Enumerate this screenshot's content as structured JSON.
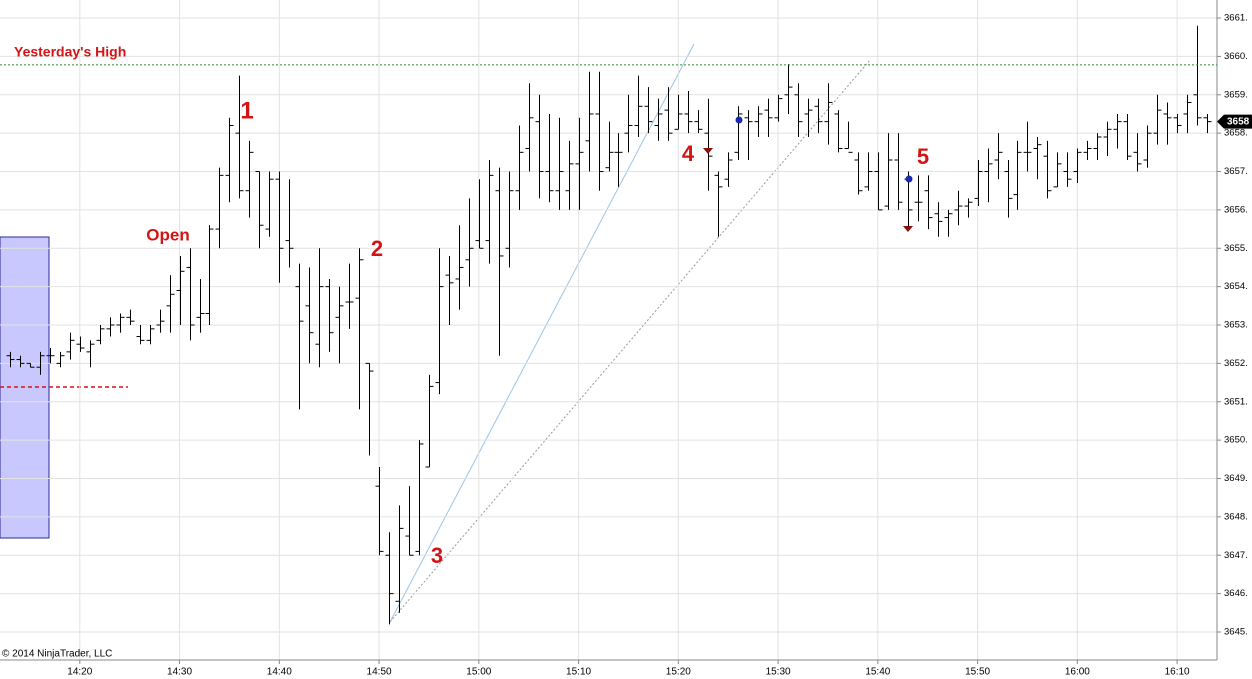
{
  "chart_data": {
    "type": "ohlc",
    "x": [
      "14:13",
      "14:14",
      "14:15",
      "14:16",
      "14:17",
      "14:18",
      "14:19",
      "14:20",
      "14:21",
      "14:22",
      "14:23",
      "14:24",
      "14:25",
      "14:26",
      "14:27",
      "14:28",
      "14:29",
      "14:30",
      "14:31",
      "14:32",
      "14:33",
      "14:34",
      "14:35",
      "14:36",
      "14:37",
      "14:38",
      "14:39",
      "14:40",
      "14:41",
      "14:42",
      "14:43",
      "14:44",
      "14:45",
      "14:46",
      "14:47",
      "14:48",
      "14:49",
      "14:50",
      "14:51",
      "14:52",
      "14:53",
      "14:54",
      "14:55",
      "14:56",
      "14:57",
      "14:58",
      "14:59",
      "15:00",
      "15:01",
      "15:02",
      "15:03",
      "15:04",
      "15:05",
      "15:06",
      "15:07",
      "15:08",
      "15:09",
      "15:10",
      "15:11",
      "15:12",
      "15:13",
      "15:14",
      "15:15",
      "15:16",
      "15:17",
      "15:18",
      "15:19",
      "15:20",
      "15:21",
      "15:22",
      "15:23",
      "15:24",
      "15:25",
      "15:26",
      "15:27",
      "15:28",
      "15:29",
      "15:30",
      "15:31",
      "15:32",
      "15:33",
      "15:34",
      "15:35",
      "15:36",
      "15:37",
      "15:38",
      "15:39",
      "15:40",
      "15:41",
      "15:42",
      "15:43",
      "15:44",
      "15:45",
      "15:46",
      "15:47",
      "15:48",
      "15:49",
      "15:50",
      "15:51",
      "15:52",
      "15:53",
      "15:54",
      "15:55",
      "15:56",
      "15:57",
      "15:58",
      "15:59",
      "16:00",
      "16:01",
      "16:02",
      "16:03",
      "16:04",
      "16:05",
      "16:06",
      "16:07",
      "16:08",
      "16:09",
      "16:10",
      "16:11",
      "16:12",
      "16:13"
    ],
    "open": [
      3652.2,
      3652.1,
      3652.0,
      3651.9,
      3652.2,
      3652.0,
      3652.3,
      3652.5,
      3652.3,
      3652.6,
      3652.9,
      3653.0,
      3653.2,
      3652.7,
      3652.6,
      3653.0,
      3653.5,
      3653.9,
      3654.5,
      3653.2,
      3653.3,
      3655.5,
      3656.9,
      3658.0,
      3656.5,
      3657.0,
      3655.5,
      3656.8,
      3655.2,
      3654.0,
      3653.5,
      3652.5,
      3654.0,
      3653.2,
      3653.6,
      3653.7,
      3652.0,
      3648.8,
      3647.0,
      3645.8,
      3647.5,
      3647.1,
      3649.3,
      3651.5,
      3654.3,
      3654.2,
      3654.7,
      3655.2,
      3655.2,
      3656.5,
      3655.0,
      3656.5,
      3657.6,
      3658.3,
      3657.0,
      3656.5,
      3656.5,
      3657.2,
      3657.8,
      3658.5,
      3657.1,
      3657.5,
      3658.0,
      3658.2,
      3658.7,
      3658.2,
      3658.6,
      3658.1,
      3658.5,
      3658.3,
      3658.0,
      3656.9,
      3656.8,
      3657.5,
      3658.4,
      3658.3,
      3658.6,
      3658.4,
      3659.0,
      3659.0,
      3658.5,
      3658.7,
      3658.3,
      3658.5,
      3657.6,
      3657.3,
      3656.6,
      3657.0,
      3656.1,
      3657.3,
      3656.8,
      3656.2,
      3656.5,
      3655.9,
      3655.8,
      3656.0,
      3656.1,
      3656.3,
      3657.0,
      3657.3,
      3657.0,
      3656.4,
      3657.5,
      3657.6,
      3657.4,
      3656.6,
      3657.0,
      3657.0,
      3657.5,
      3657.6,
      3657.9,
      3658.1,
      3658.3,
      3657.5,
      3657.3,
      3658.0,
      3658.5,
      3658.4,
      3658.5,
      3659.0,
      3658.4
    ],
    "high": [
      3652.3,
      3652.2,
      3652.0,
      3652.3,
      3652.4,
      3652.3,
      3652.8,
      3652.7,
      3652.6,
      3653.0,
      3653.2,
      3653.3,
      3653.4,
      3653.0,
      3653.0,
      3653.4,
      3654.3,
      3654.8,
      3655.0,
      3654.2,
      3655.6,
      3657.1,
      3658.4,
      3659.5,
      3657.8,
      3657.0,
      3657.0,
      3657.0,
      3656.8,
      3654.6,
      3654.5,
      3655.0,
      3654.2,
      3654.0,
      3654.6,
      3655.0,
      3652.0,
      3649.3,
      3647.6,
      3648.3,
      3648.8,
      3650.0,
      3651.7,
      3655.0,
      3654.8,
      3655.6,
      3656.3,
      3656.8,
      3657.3,
      3657.1,
      3657.0,
      3658.2,
      3659.3,
      3659.0,
      3658.5,
      3658.4,
      3657.8,
      3658.4,
      3659.6,
      3659.6,
      3658.3,
      3658.0,
      3659.0,
      3659.5,
      3659.2,
      3658.9,
      3659.2,
      3659.0,
      3659.1,
      3658.6,
      3658.9,
      3657.0,
      3657.5,
      3658.7,
      3658.6,
      3658.7,
      3658.9,
      3659.0,
      3659.8,
      3659.3,
      3658.9,
      3658.9,
      3659.3,
      3658.6,
      3658.3,
      3657.5,
      3657.5,
      3657.5,
      3658.0,
      3658.0,
      3657.0,
      3656.9,
      3656.9,
      3656.2,
      3656.0,
      3656.5,
      3656.3,
      3657.3,
      3657.6,
      3658.0,
      3657.3,
      3657.8,
      3658.3,
      3657.9,
      3657.8,
      3657.5,
      3657.5,
      3657.6,
      3657.8,
      3658.0,
      3658.3,
      3658.5,
      3658.5,
      3658.0,
      3658.2,
      3659.0,
      3658.8,
      3658.5,
      3659.0,
      3660.8,
      3658.5
    ],
    "low": [
      3651.9,
      3651.9,
      3651.9,
      3651.7,
      3652.0,
      3651.9,
      3652.1,
      3652.3,
      3651.9,
      3652.5,
      3652.7,
      3652.8,
      3653.0,
      3652.5,
      3652.5,
      3652.8,
      3652.8,
      3653.0,
      3652.6,
      3652.8,
      3653.0,
      3655.0,
      3656.2,
      3656.3,
      3655.8,
      3655.0,
      3655.3,
      3654.1,
      3654.5,
      3650.8,
      3652.0,
      3651.9,
      3652.3,
      3652.0,
      3652.9,
      3650.8,
      3649.6,
      3647.0,
      3645.2,
      3645.5,
      3647.0,
      3647.0,
      3649.3,
      3651.2,
      3653.0,
      3653.4,
      3654.0,
      3655.0,
      3654.6,
      3652.2,
      3654.5,
      3656.0,
      3657.0,
      3656.3,
      3656.2,
      3656.0,
      3656.0,
      3656.0,
      3657.0,
      3656.5,
      3657.0,
      3656.6,
      3657.5,
      3657.9,
      3658.0,
      3657.8,
      3657.8,
      3658.1,
      3658.0,
      3658.0,
      3656.5,
      3655.3,
      3656.6,
      3657.3,
      3657.3,
      3657.9,
      3657.9,
      3658.3,
      3658.5,
      3657.9,
      3657.9,
      3658.0,
      3657.7,
      3657.5,
      3657.6,
      3656.4,
      3656.5,
      3656.0,
      3656.0,
      3656.0,
      3655.5,
      3655.7,
      3655.5,
      3655.3,
      3655.3,
      3655.6,
      3655.8,
      3656.1,
      3656.2,
      3656.8,
      3655.8,
      3656.0,
      3657.0,
      3656.8,
      3656.3,
      3656.6,
      3656.6,
      3656.7,
      3657.3,
      3657.3,
      3657.4,
      3657.6,
      3657.3,
      3657.0,
      3657.1,
      3657.7,
      3657.7,
      3658.0,
      3658.0,
      3658.2,
      3658.0
    ],
    "close": [
      3652.1,
      3652.0,
      3651.9,
      3652.2,
      3652.2,
      3652.2,
      3652.6,
      3652.4,
      3652.5,
      3652.9,
      3653.0,
      3653.2,
      3653.1,
      3652.6,
      3652.9,
      3653.1,
      3653.8,
      3654.4,
      3653.0,
      3653.3,
      3655.5,
      3656.9,
      3658.2,
      3656.5,
      3657.5,
      3655.6,
      3656.8,
      3655.0,
      3655.0,
      3653.1,
      3652.8,
      3654.0,
      3652.8,
      3653.5,
      3653.6,
      3654.7,
      3651.8,
      3647.1,
      3646.0,
      3647.7,
      3647.0,
      3649.9,
      3651.4,
      3654.0,
      3654.1,
      3654.5,
      3655.0,
      3655.0,
      3656.9,
      3654.8,
      3656.5,
      3657.5,
      3658.4,
      3657.0,
      3656.5,
      3657.0,
      3657.2,
      3657.5,
      3658.5,
      3657.0,
      3657.5,
      3657.5,
      3658.2,
      3658.7,
      3658.3,
      3658.5,
      3658.0,
      3658.5,
      3658.3,
      3658.1,
      3657.4,
      3656.6,
      3657.3,
      3658.5,
      3658.3,
      3658.5,
      3658.4,
      3658.9,
      3659.2,
      3658.3,
      3658.6,
      3658.3,
      3658.8,
      3657.6,
      3657.5,
      3656.5,
      3657.0,
      3656.0,
      3657.3,
      3656.2,
      3656.0,
      3656.2,
      3655.8,
      3655.7,
      3655.9,
      3656.1,
      3656.2,
      3657.0,
      3657.2,
      3657.5,
      3656.3,
      3657.5,
      3657.5,
      3657.7,
      3656.5,
      3657.2,
      3656.8,
      3657.5,
      3657.6,
      3657.9,
      3658.1,
      3658.3,
      3657.4,
      3657.2,
      3658.0,
      3658.6,
      3658.4,
      3658.2,
      3658.8,
      3658.4,
      3658.3
    ],
    "color": "#000000",
    "xlim": [
      "14:12",
      "16:14"
    ],
    "xticks": [
      "14:20",
      "14:30",
      "14:40",
      "14:50",
      "15:00",
      "15:10",
      "15:20",
      "15:30",
      "15:40",
      "15:50",
      "16:00",
      "16:10"
    ],
    "ylim": [
      3644.27,
      3661.47
    ],
    "yticks": [
      {
        "value": 3645,
        "label": "3645."
      },
      {
        "value": 3646,
        "label": "3646."
      },
      {
        "value": 3647,
        "label": "3647."
      },
      {
        "value": 3648,
        "label": "3648."
      },
      {
        "value": 3649,
        "label": "3649."
      },
      {
        "value": 3650,
        "label": "3650."
      },
      {
        "value": 3651,
        "label": "3651."
      },
      {
        "value": 3652,
        "label": "3652."
      },
      {
        "value": 3653,
        "label": "3653."
      },
      {
        "value": 3654,
        "label": "3654."
      },
      {
        "value": 3655,
        "label": "3655."
      },
      {
        "value": 3656,
        "label": "3656."
      },
      {
        "value": 3657,
        "label": "3657."
      },
      {
        "value": 3658,
        "label": "3658."
      },
      {
        "value": 3659,
        "label": "3659."
      },
      {
        "value": 3660,
        "label": "3660."
      },
      {
        "value": 3661,
        "label": "3661."
      }
    ],
    "grid": true,
    "reference_lines": [
      {
        "name": "Yesterday's High",
        "value": 3659.78,
        "color": "#2e8b2e"
      }
    ],
    "last_price": {
      "value": 3658.3,
      "label": "3658"
    },
    "annotations": [
      "1",
      "Open",
      "2",
      "3",
      "4",
      "5"
    ],
    "copyright": "© 2014 NinjaTrader, LLC"
  }
}
